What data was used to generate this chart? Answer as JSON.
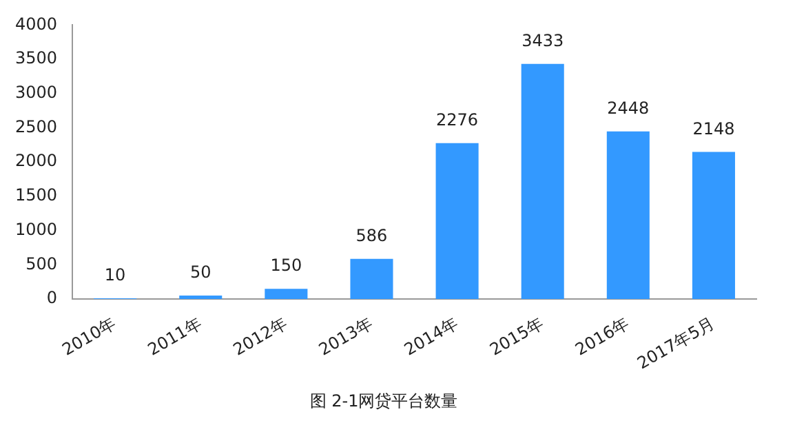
{
  "chart_data": {
    "type": "bar",
    "title": "图 2-1网贷平台数量",
    "categories": [
      "2010年",
      "2011年",
      "2012年",
      "2013年",
      "2014年",
      "2015年",
      "2016年",
      "2017年5月"
    ],
    "values": [
      10,
      50,
      150,
      586,
      2276,
      3433,
      2448,
      2148
    ],
    "color": "#3399ff",
    "ylim": [
      0,
      4000
    ],
    "yticks": [
      0,
      500,
      1000,
      1500,
      2000,
      2500,
      3000,
      3500,
      4000
    ],
    "grid": false,
    "legend": false,
    "data_labels": true
  }
}
